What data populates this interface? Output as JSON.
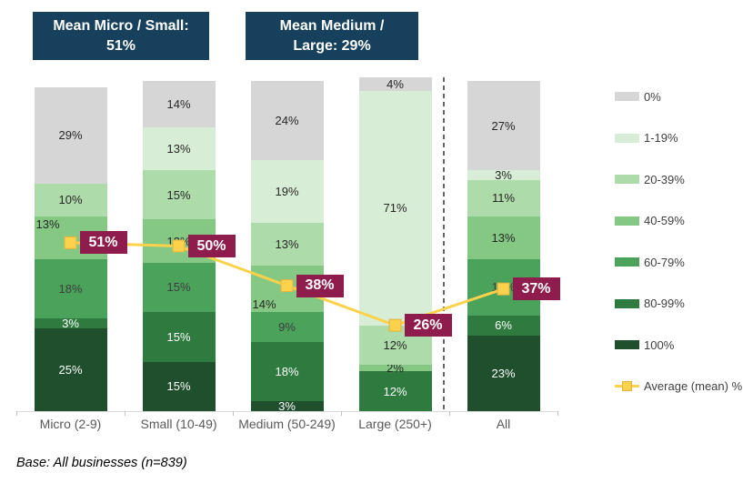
{
  "header": {
    "boxes": [
      {
        "text": "Mean Micro / Small: 51%"
      },
      {
        "text": "Mean Medium / Large: 29%"
      }
    ],
    "box_bg": "#16405c"
  },
  "base_note": "Base: All businesses (n=839)",
  "chart_data": {
    "type": "stacked-bar",
    "title": "",
    "xlabel": "",
    "ylabel": "",
    "ylim": [
      0,
      100
    ],
    "legend_position": "right",
    "grid": false,
    "categories": [
      "Micro (2-9)",
      "Small (10-49)",
      "Medium (50-249)",
      "Large (250+)",
      "All"
    ],
    "bands": [
      {
        "name": "0%",
        "color": "#d6d6d6"
      },
      {
        "name": "1-19%",
        "color": "#d8edd5"
      },
      {
        "name": "20-39%",
        "color": "#aedbaa"
      },
      {
        "name": "40-59%",
        "color": "#85c884"
      },
      {
        "name": "60-79%",
        "color": "#4ba25a"
      },
      {
        "name": "80-99%",
        "color": "#2f7a3f"
      },
      {
        "name": "100%",
        "color": "#1f4f2c"
      }
    ],
    "series": [
      {
        "name": "0%",
        "values": [
          29,
          14,
          24,
          4,
          27
        ]
      },
      {
        "name": "1-19%",
        "values": [
          0,
          13,
          19,
          71,
          3
        ]
      },
      {
        "name": "20-39%",
        "values": [
          10,
          15,
          13,
          12,
          11
        ]
      },
      {
        "name": "40-59%",
        "values": [
          13,
          13,
          14,
          2,
          13
        ]
      },
      {
        "name": "60-79%",
        "values": [
          18,
          15,
          9,
          0,
          17
        ]
      },
      {
        "name": "80-99%",
        "values": [
          3,
          15,
          18,
          12,
          6
        ]
      },
      {
        "name": "100%",
        "values": [
          25,
          15,
          3,
          0,
          23
        ]
      }
    ],
    "segment_label_hints": [
      {
        "cat": 0,
        "band": "40-59%",
        "pos": "left-top"
      },
      {
        "cat": 2,
        "band": "40-59%",
        "pos": "left-bottom"
      }
    ],
    "average_series": {
      "name": "Average (mean) %",
      "values": [
        51,
        50,
        38,
        26,
        37
      ]
    },
    "separator_after_category": "Large (250+)",
    "colors": {
      "average_line": "#fcd24c",
      "average_marker": "#fcd24c",
      "average_marker_border": "#e0b340",
      "badge_bg": "#8e1c4c",
      "badge_text": "#ffffff",
      "separator": "#333333",
      "axis": "#d9d9d9"
    }
  }
}
